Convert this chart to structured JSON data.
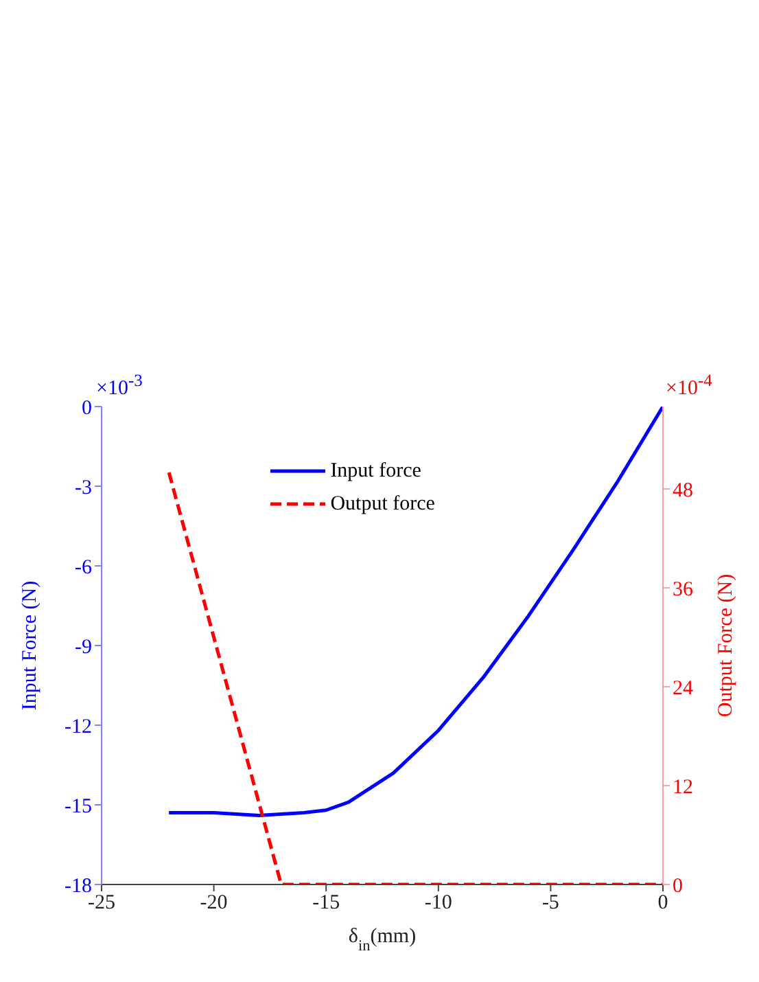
{
  "chart_data": {
    "type": "line",
    "xlabel": "δ$_{in}$(mm)",
    "ylabel": "Input Force (N)",
    "y2label": "Output Force (N)",
    "annotations": [
      "×10$^{-3}$",
      "×10$^{-4}$"
    ],
    "xlim": [
      -25,
      0
    ],
    "xticks": [
      -25,
      -20,
      -15,
      -10,
      -5,
      0
    ],
    "ylim": [
      -18,
      0
    ],
    "yticks": [
      -18,
      -15,
      -12,
      -9,
      -6,
      -3,
      0
    ],
    "y2lim": [
      0,
      58
    ],
    "y2ticks": [
      0,
      12,
      24,
      36,
      48
    ],
    "legend": "top",
    "series": [
      {
        "name": "Input force",
        "color": "#0000ff",
        "line_style": "solid",
        "x": [
          -22,
          -20,
          -18,
          -16,
          -15,
          -14,
          -12,
          -10,
          -8,
          -6,
          -4,
          -2,
          0
        ],
        "values": [
          -15.3,
          -15.3,
          -15.4,
          -15.3,
          -15.2,
          -14.9,
          -13.8,
          -12.2,
          -10.2,
          -7.9,
          -5.4,
          -2.8,
          0
        ]
      },
      {
        "name": "Output force",
        "color": "#ff0000",
        "line_style": "dashed",
        "axis": "y2",
        "x": [
          -22,
          -17,
          0
        ],
        "values": [
          50,
          0,
          0
        ]
      }
    ]
  }
}
